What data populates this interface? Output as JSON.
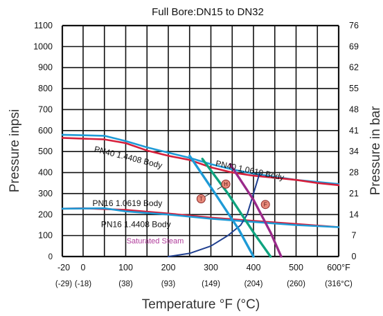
{
  "chart_data": {
    "type": "line",
    "title": "Full Bore:DN15 to DN32",
    "xlabel": "Temperature °F (°C)",
    "ylabel_left": "Pressure inpsi",
    "ylabel_right": "Pressure in bar",
    "xlim": [
      -20,
      600
    ],
    "ylim": [
      0,
      1100
    ],
    "grid": true,
    "x_ticks": [
      {
        "value": -20,
        "label": "-20",
        "celsius": "(-29)"
      },
      {
        "value": 0,
        "label": "0",
        "celsius": "(-18)"
      },
      {
        "value": 100,
        "label": "100",
        "celsius": "(38)"
      },
      {
        "value": 200,
        "label": "200",
        "celsius": "(93)"
      },
      {
        "value": 300,
        "label": "300",
        "celsius": "(149)"
      },
      {
        "value": 400,
        "label": "400",
        "celsius": "(204)"
      },
      {
        "value": 500,
        "label": "500",
        "celsius": "(260)"
      },
      {
        "value": 600,
        "label": "600°F",
        "celsius": "(316°C)"
      }
    ],
    "y_ticks_left": [
      {
        "value": 0,
        "label": "0"
      },
      {
        "value": 100,
        "label": "100"
      },
      {
        "value": 200,
        "label": "200"
      },
      {
        "value": 300,
        "label": "300"
      },
      {
        "value": 400,
        "label": "400"
      },
      {
        "value": 500,
        "label": "500"
      },
      {
        "value": 600,
        "label": "600"
      },
      {
        "value": 700,
        "label": "700"
      },
      {
        "value": 800,
        "label": "800"
      },
      {
        "value": 900,
        "label": "900"
      },
      {
        "value": 1000,
        "label": "1000"
      },
      {
        "value": 1100,
        "label": "1100"
      }
    ],
    "y_ticks_right": [
      {
        "value": 0,
        "label": "0"
      },
      {
        "value": 100,
        "label": "7"
      },
      {
        "value": 200,
        "label": "14"
      },
      {
        "value": 300,
        "label": "21"
      },
      {
        "value": 400,
        "label": "28"
      },
      {
        "value": 500,
        "label": "34"
      },
      {
        "value": 600,
        "label": "41"
      },
      {
        "value": 700,
        "label": "48"
      },
      {
        "value": 800,
        "label": "55"
      },
      {
        "value": 900,
        "label": "62"
      },
      {
        "value": 1000,
        "label": "69"
      },
      {
        "value": 1100,
        "label": "76"
      }
    ],
    "series": [
      {
        "name": "PN40 1.4408 Body",
        "color": "#1e9ad6",
        "x": [
          -20,
          50,
          100,
          150,
          200,
          250,
          300,
          350,
          400,
          450,
          500,
          550,
          600
        ],
        "y": [
          580,
          575,
          550,
          520,
          495,
          470,
          440,
          415,
          395,
          380,
          365,
          355,
          345
        ]
      },
      {
        "name": "PN40 1.0619 Body",
        "color": "#d61f3b",
        "x": [
          -20,
          50,
          100,
          150,
          200,
          250,
          300,
          350,
          400,
          450,
          500,
          550,
          600
        ],
        "y": [
          565,
          558,
          540,
          505,
          480,
          460,
          425,
          400,
          385,
          375,
          365,
          350,
          340
        ]
      },
      {
        "name": "PN16 1.0619 Body",
        "color": "#d61f3b",
        "x": [
          -20,
          0,
          100,
          200,
          300,
          400,
          500,
          600
        ],
        "y": [
          228,
          230,
          222,
          205,
          185,
          170,
          155,
          140
        ]
      },
      {
        "name": "PN16 1.4408 Body",
        "color": "#1e9ad6",
        "x": [
          -20,
          50,
          100,
          200,
          300,
          400,
          500,
          600
        ],
        "y": [
          228,
          230,
          215,
          200,
          180,
          165,
          150,
          140
        ]
      },
      {
        "name": "Saturated Steam",
        "color": "#1f3f8f",
        "x": [
          200,
          250,
          300,
          340,
          370,
          385,
          400,
          415
        ],
        "y": [
          0,
          15,
          50,
          100,
          150,
          200,
          300,
          400
        ]
      },
      {
        "name": "T",
        "color": "#1e9ad6",
        "x": [
          250,
          310,
          365,
          400
        ],
        "y": [
          480,
          300,
          130,
          0
        ]
      },
      {
        "name": "H",
        "color": "#0fa37f",
        "x": [
          280,
          340,
          400,
          440
        ],
        "y": [
          465,
          300,
          115,
          0
        ]
      },
      {
        "name": "F",
        "color": "#9a2a8a",
        "x": [
          345,
          400,
          440,
          465
        ],
        "y": [
          440,
          270,
          115,
          0
        ]
      }
    ],
    "annotations": [
      {
        "text": "PN40  1.4408 Body",
        "x": 25,
        "y": 500,
        "rotate": 14,
        "class": "curve-label"
      },
      {
        "text": "PN40   1.0619 Body",
        "x": 310,
        "y": 432,
        "rotate": 12,
        "class": "curve-label"
      },
      {
        "text": "PN16 1.0619 Body",
        "x": 22,
        "y": 240,
        "rotate": 0,
        "class": "curve-label"
      },
      {
        "text": "PN16  1.4408 Body",
        "x": 42,
        "y": 140,
        "rotate": 0,
        "class": "curve-label"
      },
      {
        "text": "Saturated Steam",
        "x": 102,
        "y": 62,
        "rotate": 0,
        "class": "steam-label"
      }
    ],
    "markers": [
      {
        "letter": "T",
        "x": 277,
        "y": 275,
        "leader_to": [
          298,
          300
        ]
      },
      {
        "letter": "H",
        "x": 335,
        "y": 345,
        "leader_to": [
          315,
          320
        ]
      },
      {
        "letter": "F",
        "x": 428,
        "y": 248,
        "leader_to": null
      }
    ],
    "marker_fill": "#e88a7a",
    "marker_stroke": "#8a2a2a",
    "grid_color": "#111111"
  }
}
